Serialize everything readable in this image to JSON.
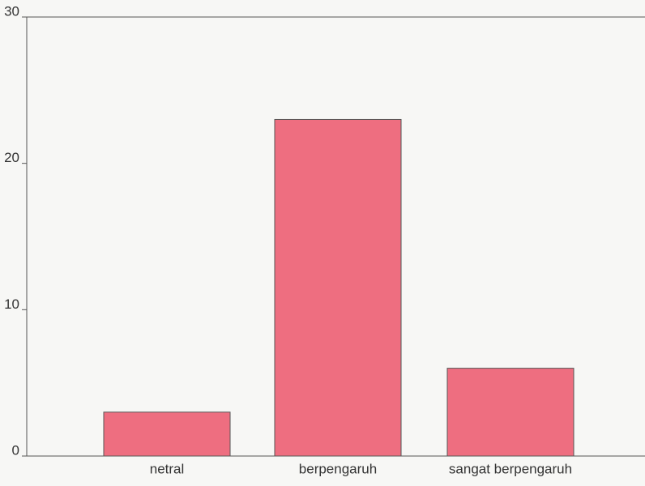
{
  "chart_data": {
    "type": "bar",
    "categories": [
      "netral",
      "berpengaruh",
      "sangat berpengaruh"
    ],
    "values": [
      3,
      23,
      6
    ],
    "color": "#ee6e80",
    "ylim": [
      0,
      30
    ],
    "yticks": [
      0,
      10,
      20,
      30
    ]
  }
}
